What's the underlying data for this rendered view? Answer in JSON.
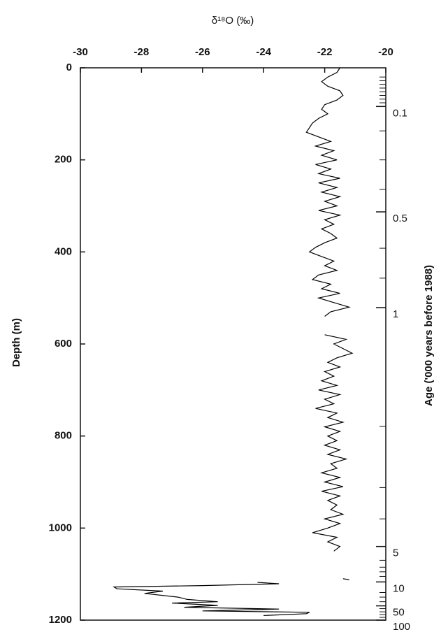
{
  "chart_data": {
    "type": "line",
    "x_label": "δ¹⁸O (‰)",
    "y_label": "Depth (m)",
    "y2_label": "Age ('000 years before 1988)",
    "xlim": [
      -30,
      -20
    ],
    "xticks": [
      -30,
      -28,
      -26,
      -24,
      -22,
      -20
    ],
    "ylim": [
      0,
      1200
    ],
    "yticks": [
      0,
      200,
      400,
      600,
      800,
      1000,
      1200
    ],
    "y_inverted": true,
    "age_ticks": [
      {
        "age": 0.1,
        "depth": 84
      },
      {
        "age": 0.5,
        "depth": 313
      },
      {
        "age": 1,
        "depth": 521
      },
      {
        "age": 5,
        "depth": 1040
      },
      {
        "age": 10,
        "depth": 1117
      },
      {
        "age": 50,
        "depth": 1169
      },
      {
        "age": 100,
        "depth": 1200
      }
    ],
    "age_minor_tick_depths": [
      20,
      28,
      36,
      44,
      52,
      60,
      68,
      76,
      137,
      200,
      264,
      392,
      457,
      779,
      912,
      980,
      1070,
      1085,
      1095,
      1105,
      1140,
      1150,
      1160,
      1175,
      1182,
      1188,
      1194
    ],
    "series": [
      {
        "color": "#000000",
        "depth": [
          0,
          10,
          20,
          30,
          40,
          50,
          60,
          70,
          80,
          90,
          100,
          110,
          120,
          130,
          140,
          150,
          160,
          170,
          180,
          190,
          200,
          210,
          220,
          230,
          240,
          250,
          260,
          270,
          280,
          290,
          300,
          310,
          320,
          330,
          340,
          350,
          360,
          370,
          380,
          390,
          400,
          410,
          420,
          430,
          440,
          450,
          460,
          470,
          480,
          490,
          500,
          510,
          520,
          530,
          540,
          560,
          580,
          590,
          600,
          610,
          620,
          630,
          640,
          650,
          660,
          670,
          680,
          690,
          700,
          710,
          720,
          730,
          740,
          750,
          760,
          770,
          780,
          790,
          800,
          810,
          820,
          830,
          840,
          850,
          860,
          870,
          880,
          890,
          900,
          910,
          920,
          930,
          940,
          950,
          960,
          970,
          980,
          990,
          1000,
          1010,
          1020,
          1030,
          1040,
          1050,
          1070,
          1110,
          1112,
          1115,
          1118,
          1121,
          1125,
          1128,
          1132,
          1137,
          1142,
          1150,
          1155,
          1160,
          1163,
          1168,
          1172,
          1176,
          1180,
          1183,
          1186,
          1190
        ],
        "values": [
          -21.5,
          -21.6,
          -21.9,
          -22.1,
          -21.9,
          -21.5,
          -21.4,
          -21.6,
          -22.0,
          -22.1,
          -21.9,
          -22.2,
          -22.4,
          -22.5,
          -22.6,
          -22.2,
          -21.8,
          -22.3,
          -21.7,
          -22.1,
          -21.6,
          -22.3,
          -21.8,
          -22.2,
          -21.5,
          -22.2,
          -21.6,
          -22.1,
          -21.5,
          -22.0,
          -21.6,
          -22.2,
          -21.5,
          -22.0,
          -21.7,
          -22.1,
          -21.8,
          -21.6,
          -22.0,
          -22.3,
          -22.5,
          -22.1,
          -21.7,
          -22.0,
          -21.6,
          -22.2,
          -22.4,
          -21.8,
          -22.1,
          -21.5,
          -22.2,
          -21.7,
          -21.2,
          -21.8,
          -22.0,
          null,
          -22.0,
          -21.3,
          -21.7,
          -21.4,
          -21.1,
          -21.6,
          -21.9,
          -21.5,
          -22.0,
          -21.7,
          -22.1,
          -21.6,
          -22.2,
          -21.5,
          -22.0,
          -21.7,
          -22.3,
          -21.6,
          -21.9,
          -21.4,
          -22.0,
          -21.5,
          -21.9,
          -21.6,
          -22.0,
          -21.5,
          -21.9,
          -21.3,
          -21.8,
          -21.6,
          -22.1,
          -21.5,
          -22.0,
          -21.4,
          -22.1,
          -21.5,
          -21.9,
          -21.6,
          -21.8,
          -21.4,
          -22.0,
          -21.5,
          -21.9,
          -22.4,
          -21.6,
          -21.9,
          -21.5,
          -21.7,
          null,
          -21.4,
          -21.2,
          null,
          -24.2,
          -23.5,
          -26.0,
          -28.9,
          -28.8,
          -27.3,
          -27.9,
          -26.8,
          -26.5,
          -25.5,
          -27.0,
          -25.5,
          -26.6,
          -23.5,
          -26.0,
          -22.5,
          -22.6,
          -24.0
        ]
      }
    ]
  }
}
